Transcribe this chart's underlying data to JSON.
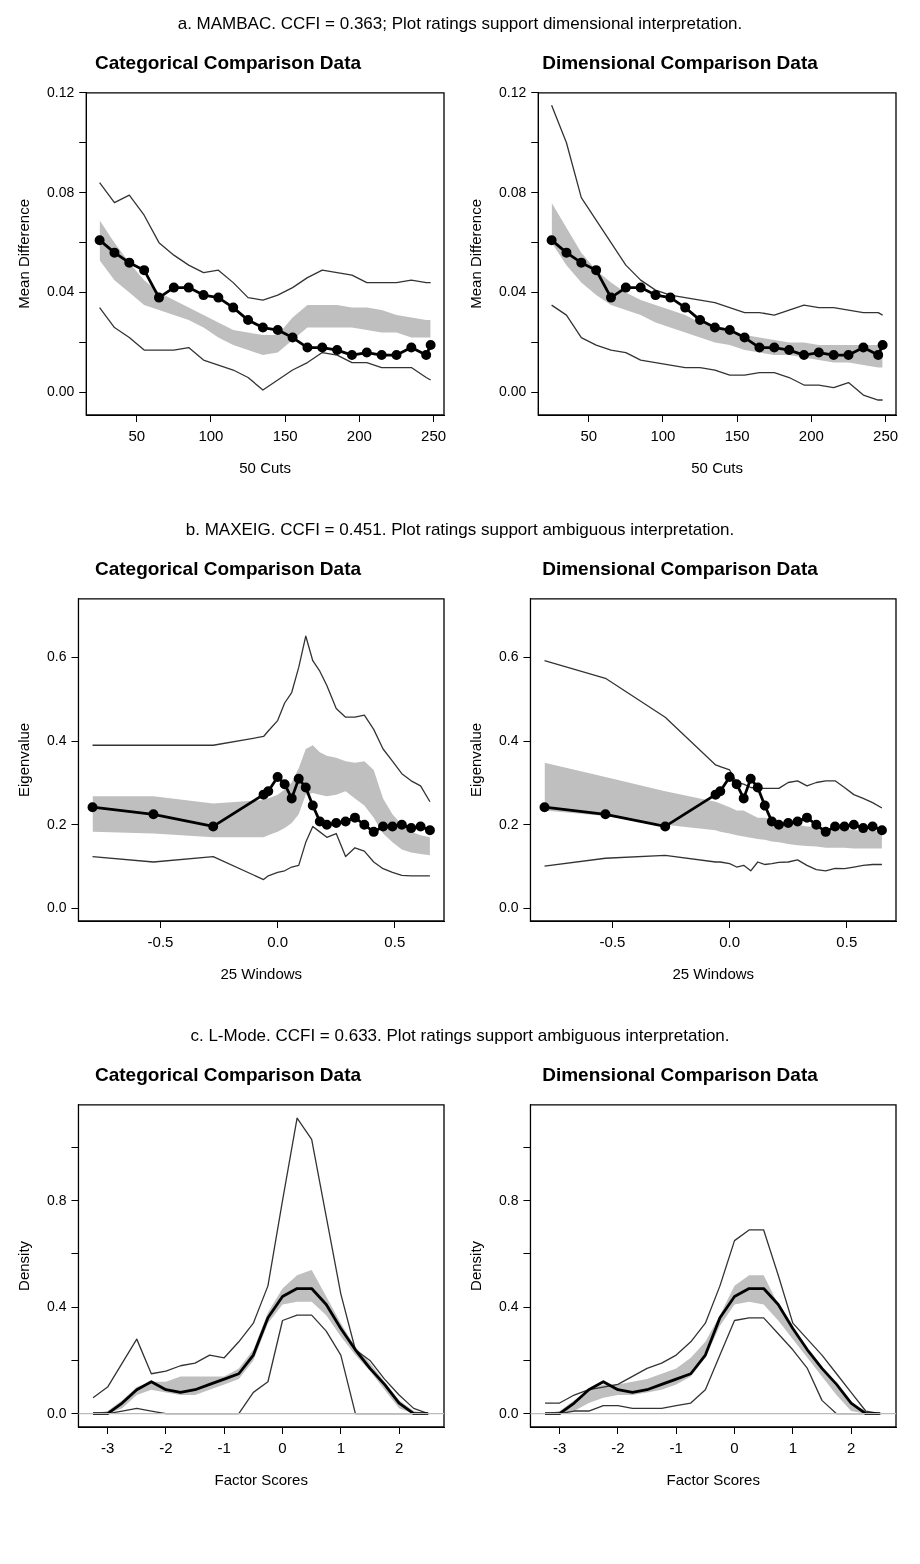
{
  "chart_data": [
    {
      "type": "line",
      "title": "Categorical Comparison Data",
      "xlabel": "50 Cuts",
      "ylabel": "Mean Difference",
      "annotations": [
        "a. MAMBAC. CCFI = 0.363; Plot ratings support dimensional interpretation."
      ],
      "x": [
        25,
        35,
        45,
        55,
        65,
        75,
        85,
        95,
        105,
        115,
        125,
        135,
        145,
        155,
        165,
        175,
        185,
        195,
        205,
        215,
        225,
        235,
        245,
        248
      ],
      "xlim": [
        16,
        257
      ],
      "xticks": [
        50,
        100,
        150,
        200,
        250
      ],
      "ylim": [
        -0.009,
        0.12
      ],
      "yticks": [
        {
          "value": 0,
          "label": "0.00"
        },
        {
          "value": 0.02,
          "label": null
        },
        {
          "value": 0.04,
          "label": "0.04"
        },
        {
          "value": 0.06,
          "label": null
        },
        {
          "value": 0.08,
          "label": "0.08"
        },
        {
          "value": 0.1,
          "label": null
        },
        {
          "value": 0.12,
          "label": "0.12"
        }
      ],
      "grid": false,
      "series": [
        {
          "type": "line",
          "color": "#000000",
          "marker": "circle",
          "values": [
            0.061,
            0.056,
            0.052,
            0.049,
            0.038,
            0.042,
            0.042,
            0.039,
            0.038,
            0.034,
            0.029,
            0.026,
            0.025,
            0.022,
            0.018,
            0.018,
            0.017,
            0.015,
            0.016,
            0.015,
            0.015,
            0.018,
            0.015,
            0.019
          ],
          "lower": [
            0.053,
            0.045,
            0.04,
            0.035,
            0.033,
            0.031,
            0.029,
            0.026,
            0.022,
            0.019,
            0.017,
            0.015,
            0.016,
            0.021,
            0.026,
            0.026,
            0.026,
            0.026,
            0.025,
            0.024,
            0.024,
            0.022,
            0.022,
            0.022
          ],
          "upper": [
            0.069,
            0.06,
            0.052,
            0.045,
            0.04,
            0.037,
            0.034,
            0.031,
            0.028,
            0.025,
            0.024,
            0.023,
            0.023,
            0.03,
            0.035,
            0.035,
            0.035,
            0.034,
            0.034,
            0.033,
            0.031,
            0.03,
            0.029,
            0.029
          ]
        },
        {
          "type": "line",
          "color": "#333333",
          "marker": "none",
          "values": [
            0.084,
            0.076,
            0.079,
            0.071,
            0.06,
            0.055,
            0.051,
            0.048,
            0.049,
            0.044,
            0.038,
            0.037,
            0.039,
            0.042,
            0.046,
            0.049,
            0.048,
            0.047,
            0.044,
            0.044,
            0.044,
            0.045,
            0.044,
            0.044
          ]
        },
        {
          "type": "line",
          "color": "#333333",
          "marker": "none",
          "values": [
            0.034,
            0.026,
            0.022,
            0.017,
            0.017,
            0.017,
            0.018,
            0.013,
            0.011,
            0.009,
            0.006,
            0.001,
            0.005,
            0.009,
            0.012,
            0.016,
            0.015,
            0.012,
            0.012,
            0.01,
            0.01,
            0.01,
            0.006,
            0.005
          ]
        }
      ]
    },
    {
      "type": "line",
      "title": "Dimensional Comparison Data",
      "xlabel": "50 Cuts",
      "ylabel": "Mean Difference",
      "x": [
        25,
        35,
        45,
        55,
        65,
        75,
        85,
        95,
        105,
        115,
        125,
        135,
        145,
        155,
        165,
        175,
        185,
        195,
        205,
        215,
        225,
        235,
        245,
        248
      ],
      "xlim": [
        16,
        257
      ],
      "xticks": [
        50,
        100,
        150,
        200,
        250
      ],
      "ylim": [
        -0.009,
        0.12
      ],
      "yticks": [
        {
          "value": 0,
          "label": "0.00"
        },
        {
          "value": 0.02,
          "label": null
        },
        {
          "value": 0.04,
          "label": "0.04"
        },
        {
          "value": 0.06,
          "label": null
        },
        {
          "value": 0.08,
          "label": "0.08"
        },
        {
          "value": 0.1,
          "label": null
        },
        {
          "value": 0.12,
          "label": "0.12"
        }
      ],
      "grid": false,
      "series": [
        {
          "type": "line",
          "color": "#000000",
          "marker": "circle",
          "values": [
            0.061,
            0.056,
            0.052,
            0.049,
            0.038,
            0.042,
            0.042,
            0.039,
            0.038,
            0.034,
            0.029,
            0.026,
            0.025,
            0.022,
            0.018,
            0.018,
            0.017,
            0.015,
            0.016,
            0.015,
            0.015,
            0.018,
            0.015,
            0.019
          ],
          "lower": [
            0.06,
            0.051,
            0.044,
            0.039,
            0.035,
            0.033,
            0.031,
            0.028,
            0.026,
            0.024,
            0.022,
            0.02,
            0.019,
            0.017,
            0.016,
            0.015,
            0.015,
            0.014,
            0.013,
            0.012,
            0.012,
            0.011,
            0.01,
            0.01
          ],
          "upper": [
            0.076,
            0.066,
            0.056,
            0.049,
            0.044,
            0.04,
            0.037,
            0.035,
            0.033,
            0.031,
            0.028,
            0.027,
            0.025,
            0.023,
            0.022,
            0.021,
            0.02,
            0.02,
            0.019,
            0.019,
            0.019,
            0.019,
            0.019,
            0.019
          ]
        },
        {
          "type": "line",
          "color": "#333333",
          "marker": "none",
          "values": [
            0.115,
            0.1,
            0.078,
            0.069,
            0.06,
            0.051,
            0.045,
            0.041,
            0.039,
            0.038,
            0.037,
            0.036,
            0.034,
            0.032,
            0.032,
            0.031,
            0.033,
            0.035,
            0.034,
            0.034,
            0.033,
            0.032,
            0.032,
            0.031
          ]
        },
        {
          "type": "line",
          "color": "#333333",
          "marker": "none",
          "values": [
            0.035,
            0.031,
            0.022,
            0.019,
            0.017,
            0.016,
            0.013,
            0.012,
            0.011,
            0.01,
            0.01,
            0.009,
            0.007,
            0.007,
            0.008,
            0.008,
            0.006,
            0.003,
            0.003,
            0.002,
            0.004,
            -0.001,
            -0.003,
            -0.003
          ]
        }
      ]
    },
    {
      "type": "line",
      "title": "Categorical Comparison Data",
      "xlabel": "25 Windows",
      "ylabel": "Eigenvalue",
      "annotations": [
        "b. MAXEIG. CCFI = 0.451. Plot ratings support ambiguous interpretation."
      ],
      "x": [
        -0.79,
        -0.53,
        -0.275,
        -0.06,
        -0.04,
        0,
        0.03,
        0.06,
        0.09,
        0.12,
        0.15,
        0.18,
        0.21,
        0.25,
        0.29,
        0.33,
        0.37,
        0.41,
        0.45,
        0.49,
        0.53,
        0.57,
        0.61,
        0.65
      ],
      "xlim": [
        -0.85,
        0.71
      ],
      "xticks": [
        -0.5,
        {
          "value": 0,
          "label": "0.0"
        },
        0.5
      ],
      "ylim": [
        -0.03,
        0.74
      ],
      "yticks": [
        {
          "value": 0,
          "label": "0.0"
        },
        0.2,
        0.4,
        0.6
      ],
      "grid": false,
      "series": [
        {
          "type": "line",
          "color": "#000000",
          "marker": "circle",
          "values": [
            0.242,
            0.225,
            0.196,
            0.272,
            0.28,
            0.314,
            0.297,
            0.263,
            0.31,
            0.289,
            0.246,
            0.208,
            0.2,
            0.204,
            0.208,
            0.217,
            0.2,
            0.183,
            0.196,
            0.196,
            0.2,
            0.192,
            0.196,
            0.187
          ],
          "lower": [
            0.183,
            0.179,
            0.17,
            0.17,
            0.175,
            0.183,
            0.192,
            0.204,
            0.225,
            0.272,
            0.276,
            0.272,
            0.268,
            0.272,
            0.28,
            0.263,
            0.246,
            0.217,
            0.179,
            0.158,
            0.141,
            0.134,
            0.13,
            0.127
          ],
          "upper": [
            0.268,
            0.268,
            0.251,
            0.259,
            0.263,
            0.272,
            0.284,
            0.301,
            0.335,
            0.381,
            0.39,
            0.373,
            0.365,
            0.36,
            0.352,
            0.348,
            0.352,
            0.331,
            0.263,
            0.225,
            0.2,
            0.183,
            0.175,
            0.17
          ]
        },
        {
          "type": "line",
          "color": "#333333",
          "marker": "none",
          "values": [
            0.39,
            0.39,
            0.39,
            0.411,
            0.424,
            0.449,
            0.491,
            0.516,
            0.576,
            0.651,
            0.592,
            0.567,
            0.533,
            0.478,
            0.457,
            0.457,
            0.462,
            0.428,
            0.381,
            0.352,
            0.322,
            0.305,
            0.293,
            0.255
          ]
        },
        {
          "type": "line",
          "color": "#333333",
          "marker": "none",
          "values": [
            0.124,
            0.111,
            0.124,
            0.069,
            0.078,
            0.086,
            0.09,
            0.099,
            0.103,
            0.158,
            0.196,
            0.183,
            0.17,
            0.179,
            0.124,
            0.145,
            0.137,
            0.111,
            0.095,
            0.086,
            0.079,
            0.078,
            0.078,
            0.078
          ]
        }
      ]
    },
    {
      "type": "line",
      "title": "Dimensional Comparison Data",
      "xlabel": "25 Windows",
      "ylabel": "Eigenvalue",
      "x": [
        -0.79,
        -0.53,
        -0.275,
        -0.06,
        -0.04,
        0,
        0.03,
        0.06,
        0.09,
        0.12,
        0.15,
        0.18,
        0.21,
        0.25,
        0.29,
        0.33,
        0.37,
        0.41,
        0.45,
        0.49,
        0.53,
        0.57,
        0.61,
        0.65
      ],
      "xlim": [
        -0.85,
        0.71
      ],
      "xticks": [
        -0.5,
        {
          "value": 0,
          "label": "0.0"
        },
        0.5
      ],
      "ylim": [
        -0.03,
        0.74
      ],
      "yticks": [
        {
          "value": 0,
          "label": "0.0"
        },
        0.2,
        0.4,
        0.6
      ],
      "grid": false,
      "series": [
        {
          "type": "line",
          "color": "#000000",
          "marker": "circle",
          "values": [
            0.242,
            0.225,
            0.196,
            0.272,
            0.28,
            0.314,
            0.297,
            0.263,
            0.31,
            0.289,
            0.246,
            0.208,
            0.2,
            0.204,
            0.208,
            0.217,
            0.2,
            0.183,
            0.196,
            0.196,
            0.2,
            0.192,
            0.196,
            0.187
          ],
          "lower": [
            0.234,
            0.221,
            0.2,
            0.187,
            0.183,
            0.179,
            0.175,
            0.172,
            0.169,
            0.166,
            0.164,
            0.16,
            0.158,
            0.154,
            0.151,
            0.149,
            0.148,
            0.145,
            0.145,
            0.145,
            0.143,
            0.143,
            0.143,
            0.143
          ],
          "upper": [
            0.348,
            0.314,
            0.28,
            0.255,
            0.251,
            0.242,
            0.234,
            0.234,
            0.225,
            0.217,
            0.217,
            0.213,
            0.208,
            0.204,
            0.2,
            0.196,
            0.196,
            0.192,
            0.192,
            0.192,
            0.187,
            0.187,
            0.186,
            0.183
          ]
        },
        {
          "type": "line",
          "color": "#333333",
          "marker": "none",
          "values": [
            0.592,
            0.55,
            0.457,
            0.343,
            0.339,
            0.331,
            0.301,
            0.297,
            0.289,
            0.287,
            0.287,
            0.287,
            0.287,
            0.301,
            0.305,
            0.293,
            0.301,
            0.305,
            0.305,
            0.289,
            0.272,
            0.263,
            0.253,
            0.24
          ]
        },
        {
          "type": "line",
          "color": "#333333",
          "marker": "none",
          "values": [
            0.101,
            0.12,
            0.127,
            0.111,
            0.111,
            0.107,
            0.099,
            0.103,
            0.09,
            0.111,
            0.105,
            0.107,
            0.11,
            0.111,
            0.116,
            0.103,
            0.093,
            0.09,
            0.096,
            0.095,
            0.099,
            0.103,
            0.105,
            0.105
          ]
        }
      ]
    },
    {
      "type": "line",
      "title": "Categorical Comparison Data",
      "xlabel": "Factor Scores",
      "ylabel": "Density",
      "annotations": [
        "c. L-Mode. CCFI = 0.633. Plot ratings support ambiguous interpretation."
      ],
      "x": [
        -3.25,
        -3,
        -2.75,
        -2.5,
        -2.25,
        -2,
        -1.75,
        -1.5,
        -1.25,
        -1,
        -0.75,
        -0.5,
        -0.25,
        0,
        0.25,
        0.5,
        0.75,
        1,
        1.25,
        1.5,
        1.75,
        2,
        2.25,
        2.5
      ],
      "xlim": [
        -3.5,
        2.77
      ],
      "xticks": [
        -3,
        -2,
        -1,
        0,
        1,
        2
      ],
      "ylim": [
        -0.05,
        1.16
      ],
      "yticks": [
        {
          "value": 0,
          "label": "0.0"
        },
        {
          "value": 0.2,
          "label": null
        },
        0.4,
        {
          "value": 0.6,
          "label": null
        },
        0.8,
        {
          "value": 1,
          "label": null
        }
      ],
      "grid": false,
      "ref_lines": [
        {
          "axis": "y",
          "value": 0,
          "color": "#bbbbbb"
        }
      ],
      "series": [
        {
          "type": "line",
          "color": "#000000",
          "marker": "none",
          "values": [
            0,
            0,
            0.04,
            0.09,
            0.12,
            0.09,
            0.08,
            0.09,
            0.11,
            0.13,
            0.15,
            0.22,
            0.36,
            0.44,
            0.47,
            0.47,
            0.41,
            0.32,
            0.24,
            0.17,
            0.11,
            0.04,
            0,
            0
          ],
          "lower": [
            0,
            0,
            0.02,
            0.07,
            0.09,
            0.08,
            0.07,
            0.07,
            0.09,
            0.11,
            0.13,
            0.2,
            0.34,
            0.41,
            0.42,
            0.42,
            0.37,
            0.29,
            0.22,
            0.16,
            0.09,
            0.02,
            0,
            0
          ],
          "upper": [
            0,
            0.01,
            0.05,
            0.1,
            0.12,
            0.12,
            0.14,
            0.14,
            0.14,
            0.14,
            0.17,
            0.24,
            0.38,
            0.47,
            0.52,
            0.54,
            0.44,
            0.34,
            0.25,
            0.19,
            0.12,
            0.05,
            0.01,
            0
          ]
        },
        {
          "type": "line",
          "color": "#333333",
          "marker": "none",
          "values": [
            0.06,
            0.1,
            0.19,
            0.28,
            0.15,
            0.16,
            0.18,
            0.19,
            0.22,
            0.21,
            0.27,
            0.34,
            0.48,
            0.8,
            1.11,
            1.03,
            0.74,
            0.45,
            0.24,
            0.2,
            0.13,
            0.07,
            0.02,
            0
          ]
        },
        {
          "type": "line",
          "color": "#333333",
          "marker": "none",
          "values": [
            0,
            0,
            0.01,
            0.02,
            0.01,
            0,
            0,
            0,
            0,
            0,
            0,
            0.08,
            0.12,
            0.35,
            0.37,
            0.37,
            0.31,
            0.22,
            0,
            0,
            0,
            0,
            0,
            0
          ]
        }
      ]
    },
    {
      "type": "line",
      "title": "Dimensional Comparison Data",
      "xlabel": "Factor Scores",
      "ylabel": "Density",
      "x": [
        -3.25,
        -3,
        -2.75,
        -2.5,
        -2.25,
        -2,
        -1.75,
        -1.5,
        -1.25,
        -1,
        -0.75,
        -0.5,
        -0.25,
        0,
        0.25,
        0.5,
        0.75,
        1,
        1.25,
        1.5,
        1.75,
        2,
        2.25,
        2.5
      ],
      "xlim": [
        -3.5,
        2.77
      ],
      "xticks": [
        -3,
        -2,
        -1,
        0,
        1,
        2
      ],
      "ylim": [
        -0.05,
        1.16
      ],
      "yticks": [
        {
          "value": 0,
          "label": "0.0"
        },
        {
          "value": 0.2,
          "label": null
        },
        0.4,
        {
          "value": 0.6,
          "label": null
        },
        0.8,
        {
          "value": 1,
          "label": null
        }
      ],
      "grid": false,
      "ref_lines": [
        {
          "axis": "y",
          "value": 0,
          "color": "#bbbbbb"
        }
      ],
      "series": [
        {
          "type": "line",
          "color": "#000000",
          "marker": "none",
          "values": [
            0,
            0,
            0.04,
            0.09,
            0.12,
            0.09,
            0.08,
            0.09,
            0.11,
            0.13,
            0.15,
            0.22,
            0.36,
            0.44,
            0.47,
            0.47,
            0.41,
            0.32,
            0.24,
            0.17,
            0.11,
            0.04,
            0,
            0
          ],
          "lower": [
            0,
            0,
            0.01,
            0.04,
            0.06,
            0.07,
            0.07,
            0.08,
            0.09,
            0.11,
            0.14,
            0.21,
            0.33,
            0.41,
            0.42,
            0.41,
            0.35,
            0.28,
            0.21,
            0.14,
            0.07,
            0.01,
            0,
            0
          ],
          "upper": [
            0,
            0.01,
            0.05,
            0.09,
            0.11,
            0.11,
            0.12,
            0.13,
            0.15,
            0.17,
            0.21,
            0.27,
            0.37,
            0.48,
            0.52,
            0.52,
            0.41,
            0.32,
            0.24,
            0.17,
            0.1,
            0.04,
            0.01,
            0
          ]
        },
        {
          "type": "line",
          "color": "#333333",
          "marker": "none",
          "values": [
            0.04,
            0.04,
            0.07,
            0.09,
            0.1,
            0.11,
            0.14,
            0.17,
            0.19,
            0.22,
            0.27,
            0.34,
            0.48,
            0.65,
            0.69,
            0.69,
            0.52,
            0.34,
            0.28,
            0.22,
            0.15,
            0.08,
            0.01,
            0
          ]
        },
        {
          "type": "line",
          "color": "#333333",
          "marker": "none",
          "values": [
            0,
            0,
            0.01,
            0.01,
            0.03,
            0.03,
            0.02,
            0.02,
            0.02,
            0.03,
            0.04,
            0.09,
            0.22,
            0.35,
            0.36,
            0.36,
            0.3,
            0.24,
            0.17,
            0.05,
            0,
            0,
            0,
            0
          ]
        }
      ]
    }
  ]
}
